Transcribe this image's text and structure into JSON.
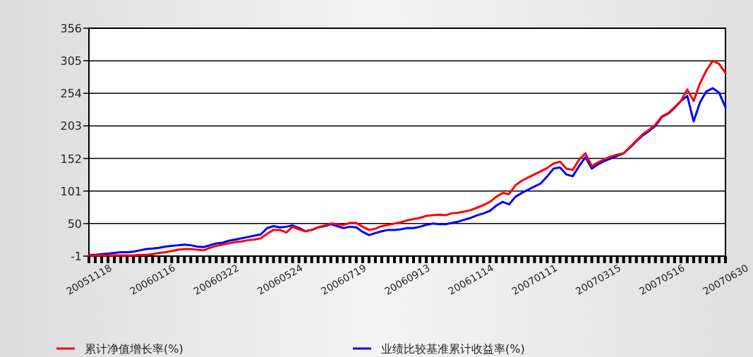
{
  "chart_data": {
    "type": "line",
    "categories": [
      "20051118",
      null,
      null,
      null,
      null,
      null,
      null,
      null,
      null,
      null,
      "20060116",
      null,
      null,
      null,
      null,
      null,
      null,
      null,
      null,
      null,
      "20060322",
      null,
      null,
      null,
      null,
      null,
      null,
      null,
      null,
      null,
      "20060524",
      null,
      null,
      null,
      null,
      null,
      null,
      null,
      null,
      null,
      "20060719",
      null,
      null,
      null,
      null,
      null,
      null,
      null,
      null,
      null,
      "20060913",
      null,
      null,
      null,
      null,
      null,
      null,
      null,
      null,
      null,
      "20061114",
      null,
      null,
      null,
      null,
      null,
      null,
      null,
      null,
      null,
      "20070111",
      null,
      null,
      null,
      null,
      null,
      null,
      null,
      null,
      null,
      "20070315",
      null,
      null,
      null,
      null,
      null,
      null,
      null,
      null,
      null,
      "20070516",
      null,
      null,
      null,
      null,
      null,
      null,
      null,
      null,
      null,
      "20070630"
    ],
    "series": [
      {
        "name": "累计净值增长率(%)",
        "color": "#ff0000",
        "values": [
          0,
          0,
          0,
          0,
          0,
          0,
          0,
          0,
          1,
          1,
          2,
          4,
          5,
          7,
          9,
          10,
          10,
          9,
          8,
          12,
          15,
          17,
          19,
          21,
          22,
          24,
          25,
          27,
          34,
          40,
          40,
          36,
          45,
          41,
          38,
          40,
          44,
          47,
          50,
          49,
          48,
          51,
          51,
          45,
          40,
          42,
          46,
          48,
          50,
          52,
          55,
          57,
          59,
          62,
          63,
          64,
          63,
          66,
          67,
          69,
          71,
          75,
          79,
          84,
          92,
          98,
          96,
          110,
          117,
          122,
          127,
          132,
          137,
          144,
          147,
          136,
          134,
          150,
          160,
          140,
          146,
          151,
          155,
          158,
          160,
          170,
          180,
          190,
          197,
          205,
          218,
          223,
          232,
          242,
          260,
          242,
          270,
          290,
          305,
          300,
          286
        ]
      },
      {
        "name": "业绩比较基准累计收益率(%)",
        "color": "#0000ff",
        "values": [
          1,
          1,
          2,
          3,
          4,
          5,
          5,
          6,
          8,
          10,
          11,
          12,
          14,
          15,
          16,
          17,
          16,
          14,
          13,
          16,
          19,
          20,
          23,
          25,
          27,
          29,
          31,
          33,
          43,
          46,
          44,
          45,
          47,
          43,
          38,
          40,
          44,
          46,
          49,
          46,
          43,
          45,
          44,
          37,
          32,
          35,
          38,
          40,
          40,
          41,
          43,
          43,
          45,
          48,
          50,
          49,
          49,
          51,
          53,
          56,
          59,
          63,
          66,
          70,
          78,
          84,
          80,
          92,
          98,
          103,
          108,
          113,
          124,
          136,
          138,
          127,
          124,
          140,
          154,
          136,
          143,
          148,
          152,
          156,
          160,
          169,
          179,
          188,
          195,
          203,
          217,
          222,
          231,
          242,
          250,
          210,
          240,
          257,
          262,
          255,
          232
        ]
      }
    ],
    "ylim": [
      -1,
      356
    ],
    "yticks": [
      -1,
      50,
      101,
      152,
      203,
      254,
      305,
      356
    ],
    "grid": "y",
    "legend": "bottom",
    "marker": "none",
    "line_style": "solid"
  }
}
